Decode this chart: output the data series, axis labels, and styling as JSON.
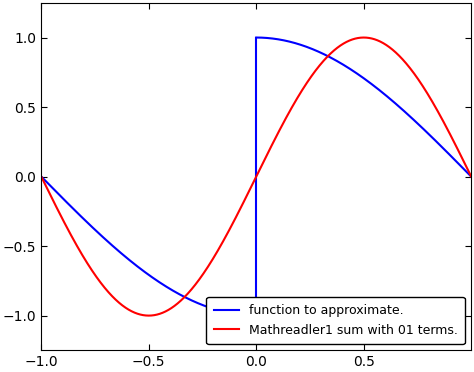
{
  "title": "",
  "xlabel": "",
  "ylabel": "",
  "xlim": [
    -1,
    1
  ],
  "ylim": [
    -1.25,
    1.25
  ],
  "xticks": [
    -1,
    -0.5,
    0,
    0.5
  ],
  "yticks": [
    -1,
    -0.5,
    0,
    0.5,
    1
  ],
  "blue_label": "function to approximate.",
  "red_label": "Mathreadler1 sum with 01 terms.",
  "blue_color": "#0000FF",
  "red_color": "#FF0000",
  "linewidth": 1.5,
  "legend_loc": "lower right",
  "background_color": "#FFFFFF",
  "fourier_terms": 1
}
